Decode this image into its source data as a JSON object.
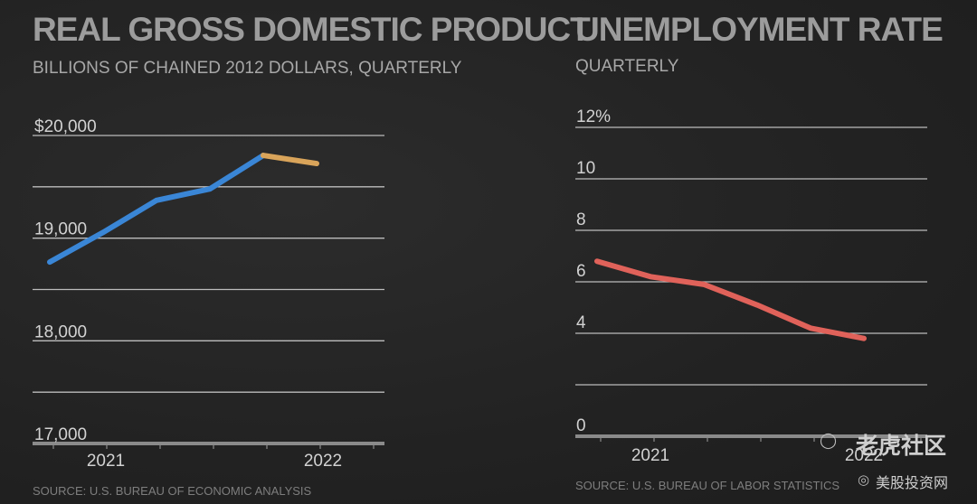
{
  "charts": {
    "gdp": {
      "title": "REAL GROSS DOMESTIC PRODUCT",
      "subtitle": "BILLIONS OF CHAINED 2012 DOLLARS, QUARTERLY",
      "source": "SOURCE: U.S. BUREAU OF ECONOMIC ANALYSIS"
    },
    "unemployment": {
      "title": "UNEMPLOYMENT RATE",
      "subtitle": "QUARTERLY",
      "source": "SOURCE: U.S. BUREAU OF LABOR STATISTICS"
    }
  },
  "chart_data": [
    {
      "type": "line",
      "title": "REAL GROSS DOMESTIC PRODUCT",
      "subtitle": "BILLIONS OF CHAINED 2012 DOLLARS, QUARTERLY",
      "xlabel": "",
      "ylabel": "",
      "ylim": [
        17000,
        20000
      ],
      "y_ticks": [
        17000,
        17500,
        18000,
        18500,
        19000,
        19500,
        20000
      ],
      "y_tick_labels": [
        "17,000",
        "",
        "18,000",
        "",
        "19,000",
        "",
        "$20,000"
      ],
      "x_tick_labels": [
        "2021",
        "2022"
      ],
      "grid": true,
      "x": [
        "2020 Q4",
        "2021 Q1",
        "2021 Q2",
        "2021 Q3",
        "2021 Q4",
        "2022 Q1"
      ],
      "series": [
        {
          "values": [
            18767,
            19056,
            19368,
            19479,
            19806,
            null
          ],
          "color": "#3a86d6"
        },
        {
          "values": [
            null,
            null,
            null,
            null,
            19806,
            19727
          ],
          "color": "#d9a45a"
        }
      ],
      "source": "SOURCE: U.S. BUREAU OF ECONOMIC ANALYSIS"
    },
    {
      "type": "line",
      "title": "UNEMPLOYMENT RATE",
      "subtitle": "QUARTERLY",
      "xlabel": "",
      "ylabel": "",
      "ylim": [
        0,
        12
      ],
      "y_ticks": [
        0,
        2,
        4,
        6,
        8,
        10,
        12
      ],
      "y_tick_labels": [
        "0",
        "",
        "4",
        "6",
        "8",
        "10",
        "12%"
      ],
      "x_tick_labels": [
        "2021",
        "2022"
      ],
      "grid": true,
      "x": [
        "2020 Q4",
        "2021 Q1",
        "2021 Q2",
        "2021 Q3",
        "2021 Q4",
        "2022 Q1"
      ],
      "series": [
        {
          "values": [
            6.8,
            6.2,
            5.9,
            5.1,
            4.2,
            3.8
          ],
          "color": "#e0625a"
        }
      ],
      "source": "SOURCE: U.S. BUREAU OF LABOR STATISTICS"
    }
  ],
  "watermark": {
    "line1": "老虎社区",
    "line2": "美股投资网"
  }
}
